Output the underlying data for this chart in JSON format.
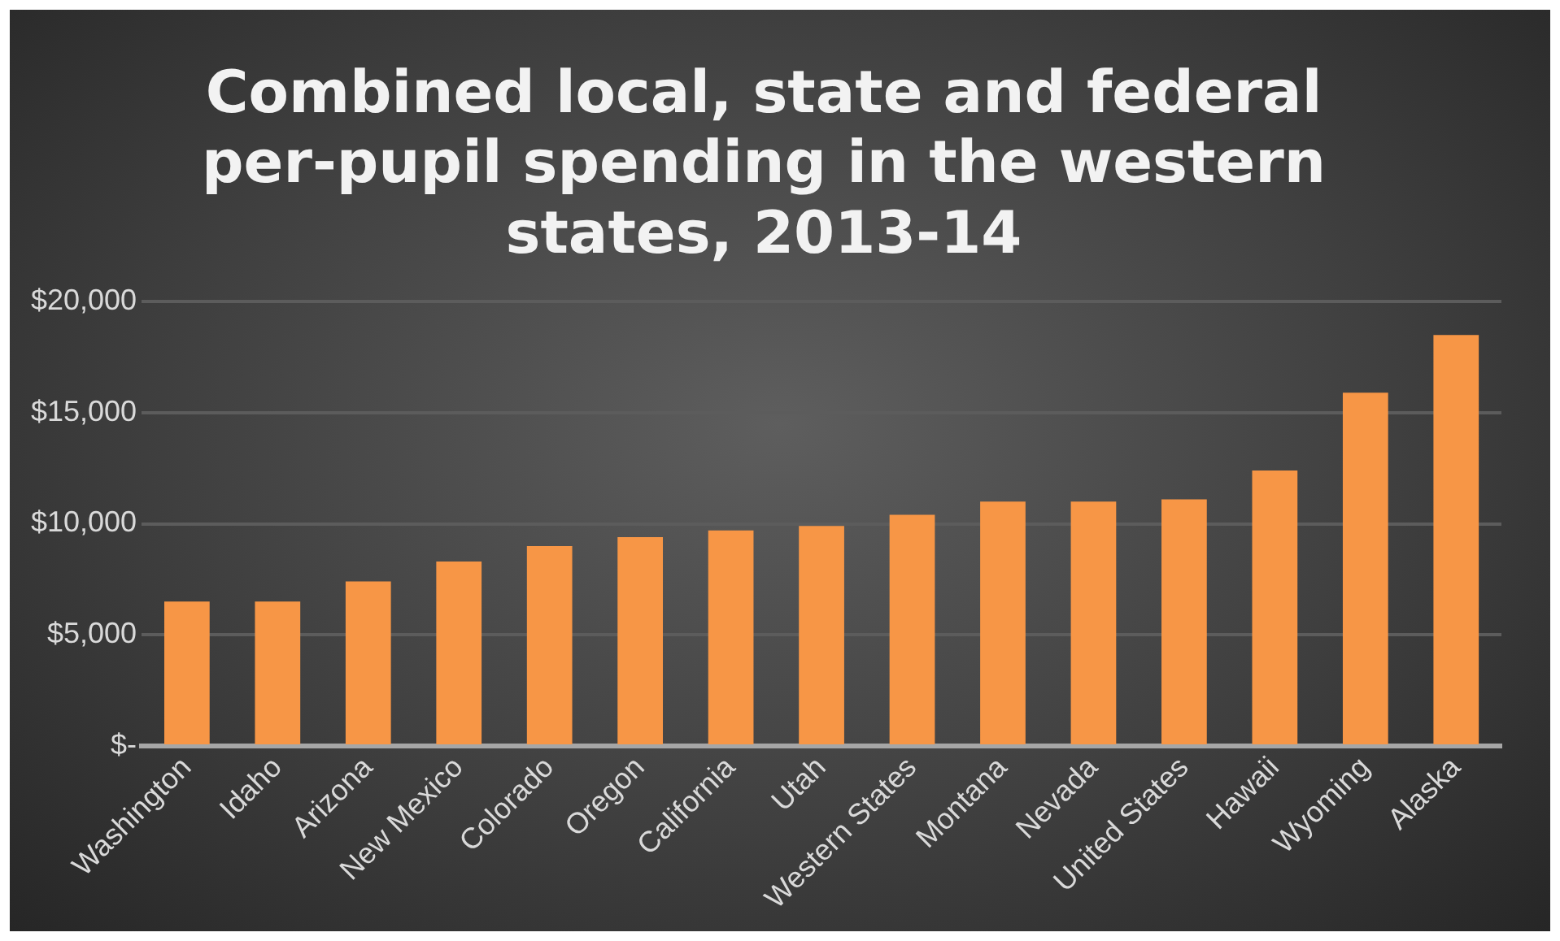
{
  "chart_data": {
    "type": "bar",
    "title": "Combined local, state and federal per-pupil spending in the western states, 2013-14",
    "categories": [
      "Washington",
      "Idaho",
      "Arizona",
      "New Mexico",
      "Colorado",
      "Oregon",
      "California",
      "Utah",
      "Western States",
      "Montana",
      "Nevada",
      "United States",
      "Hawaii",
      "Wyoming",
      "Alaska"
    ],
    "values": [
      6500,
      6500,
      7400,
      8300,
      9000,
      9400,
      9700,
      9900,
      10400,
      11000,
      11000,
      11100,
      12400,
      15900,
      18500
    ],
    "color": "#f79646",
    "ylim": [
      0,
      20000
    ],
    "yticks": [
      {
        "value": 0,
        "label": "$-"
      },
      {
        "value": 5000,
        "label": "$5,000"
      },
      {
        "value": 10000,
        "label": "$10,000"
      },
      {
        "value": 15000,
        "label": "$15,000"
      },
      {
        "value": 20000,
        "label": "$20,000"
      }
    ],
    "grid": "y",
    "legend": false
  }
}
